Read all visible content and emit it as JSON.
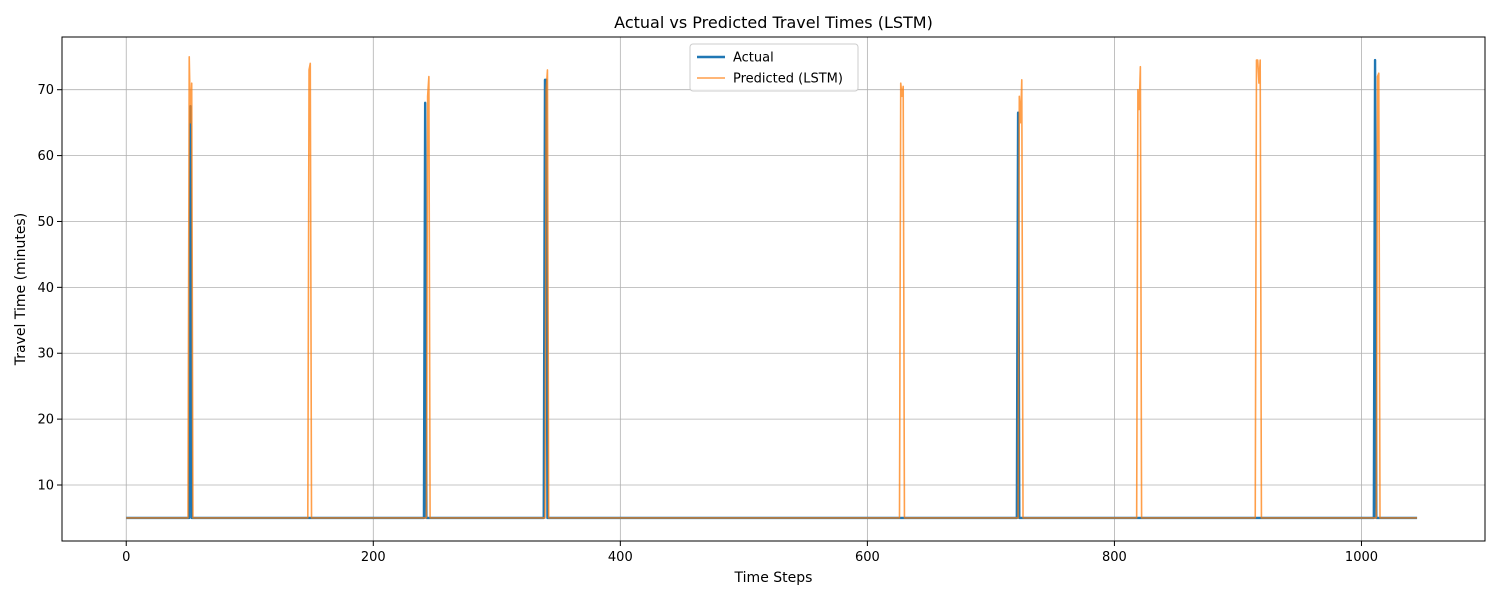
{
  "chart_data": {
    "type": "line",
    "title": "Actual vs Predicted Travel Times (LSTM)",
    "xlabel": "Time Steps",
    "ylabel": "Travel Time (minutes)",
    "xlim": [
      -52,
      1100
    ],
    "ylim": [
      1.5,
      78
    ],
    "xticks": [
      0,
      200,
      400,
      600,
      800,
      1000
    ],
    "yticks": [
      10,
      20,
      30,
      40,
      50,
      60,
      70
    ],
    "grid": true,
    "legend_position": "top-center",
    "baseline": 5,
    "series": [
      {
        "name": "Actual",
        "color": "#1f77b4",
        "linewidth": 2.4,
        "points": [
          [
            0,
            5
          ],
          [
            51,
            5
          ],
          [
            52,
            67.5
          ],
          [
            53,
            5
          ],
          [
            241,
            5
          ],
          [
            242,
            68
          ],
          [
            243,
            5
          ],
          [
            338,
            5
          ],
          [
            339,
            71.5
          ],
          [
            340,
            71.5
          ],
          [
            341,
            5
          ],
          [
            721,
            5
          ],
          [
            722,
            66.5
          ],
          [
            723,
            5
          ],
          [
            1010,
            5
          ],
          [
            1011,
            74.5
          ],
          [
            1012,
            5
          ],
          [
            1045,
            5
          ]
        ]
      },
      {
        "name": "Predicted (LSTM)",
        "color": "#ff7f0e",
        "linewidth": 1.6,
        "points": [
          [
            0,
            5
          ],
          [
            50,
            5
          ],
          [
            51,
            75
          ],
          [
            52,
            65
          ],
          [
            53,
            71
          ],
          [
            54,
            5
          ],
          [
            147,
            5
          ],
          [
            148,
            73
          ],
          [
            149,
            74
          ],
          [
            150,
            5
          ],
          [
            243,
            5
          ],
          [
            244,
            69
          ],
          [
            245,
            72
          ],
          [
            246,
            5
          ],
          [
            339,
            5
          ],
          [
            340,
            70
          ],
          [
            341,
            73
          ],
          [
            342,
            5
          ],
          [
            626,
            5
          ],
          [
            627,
            71
          ],
          [
            628,
            69
          ],
          [
            629,
            70.5
          ],
          [
            630,
            5
          ],
          [
            722,
            5
          ],
          [
            723,
            69
          ],
          [
            724,
            65
          ],
          [
            725,
            71.5
          ],
          [
            726,
            5
          ],
          [
            818,
            5
          ],
          [
            819,
            70
          ],
          [
            820,
            67
          ],
          [
            821,
            73.5
          ],
          [
            822,
            5
          ],
          [
            914,
            5
          ],
          [
            915,
            74.5
          ],
          [
            916,
            74.5
          ],
          [
            917,
            71
          ],
          [
            918,
            74.5
          ],
          [
            919,
            5
          ],
          [
            1012,
            5
          ],
          [
            1013,
            72
          ],
          [
            1014,
            72.5
          ],
          [
            1015,
            5
          ],
          [
            1045,
            5
          ]
        ]
      }
    ]
  }
}
